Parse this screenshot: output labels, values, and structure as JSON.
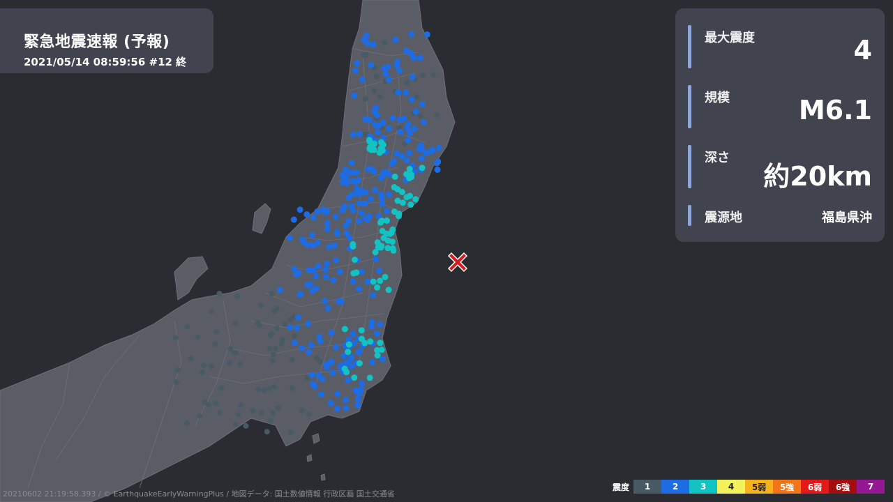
{
  "header": {
    "title": "緊急地震速報 (予報)",
    "subtitle": "2021/05/14 08:59:56 #12 終"
  },
  "info": {
    "intensity_label": "最大震度",
    "intensity_value": "4",
    "magnitude_label": "規模",
    "magnitude_value": "M6.1",
    "depth_label": "深さ",
    "depth_value": "約20km",
    "region_label": "震源地",
    "region_value": "福島県沖"
  },
  "legend": {
    "title": "震度",
    "items": [
      {
        "label": "1",
        "color": "#485b64",
        "text_color": "#ffffff"
      },
      {
        "label": "2",
        "color": "#1e6ce3",
        "text_color": "#ffffff"
      },
      {
        "label": "3",
        "color": "#12c3c3",
        "text_color": "#ffffff"
      },
      {
        "label": "4",
        "color": "#f2f25a",
        "text_color": "#222222"
      },
      {
        "label": "5弱",
        "color": "#f6b21d",
        "text_color": "#222222"
      },
      {
        "label": "5強",
        "color": "#f27618",
        "text_color": "#ffffff"
      },
      {
        "label": "6弱",
        "color": "#e61919",
        "text_color": "#ffffff"
      },
      {
        "label": "6強",
        "color": "#a50e0e",
        "text_color": "#ffffff"
      },
      {
        "label": "7",
        "color": "#941794",
        "text_color": "#ffffff"
      }
    ]
  },
  "credit": "20210602 21:19:58.393 / © EarthquakeEarlyWarningPlus / 地図データ: 国土数値情報 行政区画 国土交通省",
  "map": {
    "land_color": "#5a5d66",
    "border_color": "#6e7179",
    "sea_color": "#2b2c31",
    "epicenter_color": "#d81c1c",
    "station_colors": {
      "1": "#485b64",
      "2": "#1e6ce3",
      "3": "#12c3c3"
    }
  }
}
